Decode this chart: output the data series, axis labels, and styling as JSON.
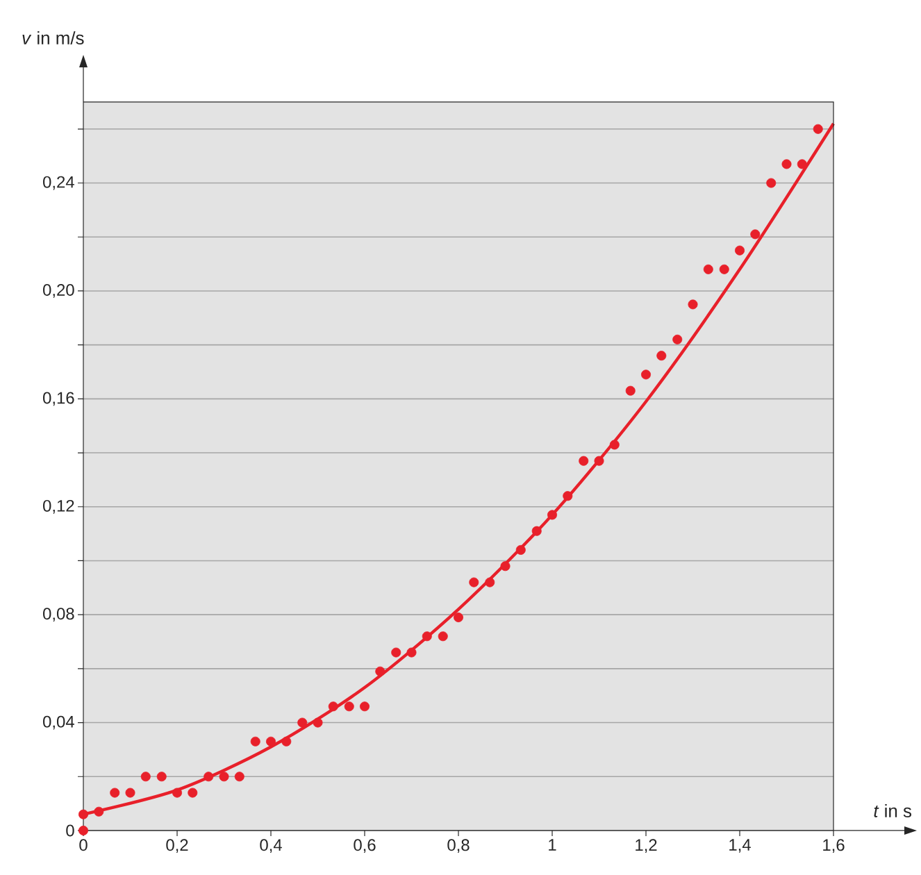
{
  "chart_data": {
    "type": "scatter",
    "xlabel": "*t* in s",
    "ylabel": "*v* in m/s",
    "xlim": [
      0,
      1.6
    ],
    "ylim": [
      0,
      0.27
    ],
    "xticks": [
      {
        "value": 0,
        "label": "0"
      },
      {
        "value": 0.2,
        "label": "0,2"
      },
      {
        "value": 0.4,
        "label": "0,4"
      },
      {
        "value": 0.6,
        "label": "0,6"
      },
      {
        "value": 0.8,
        "label": "0,8"
      },
      {
        "value": 1,
        "label": "1"
      },
      {
        "value": 1.2,
        "label": "1,2"
      },
      {
        "value": 1.4,
        "label": "1,4"
      },
      {
        "value": 1.6,
        "label": "1,6"
      }
    ],
    "yticks": [
      {
        "value": 0,
        "label": "0"
      },
      {
        "value": 0.02,
        "label": null
      },
      {
        "value": 0.04,
        "label": "0,04"
      },
      {
        "value": 0.06,
        "label": null
      },
      {
        "value": 0.08,
        "label": "0,08"
      },
      {
        "value": 0.1,
        "label": null
      },
      {
        "value": 0.12,
        "label": "0,12"
      },
      {
        "value": 0.14,
        "label": null
      },
      {
        "value": 0.16,
        "label": "0,16"
      },
      {
        "value": 0.18,
        "label": null
      },
      {
        "value": 0.2,
        "label": "0,20"
      },
      {
        "value": 0.22,
        "label": null
      },
      {
        "value": 0.24,
        "label": "0,24"
      },
      {
        "value": 0.26,
        "label": null
      }
    ],
    "grid": "y",
    "series": [
      {
        "marker": "circle",
        "color": "#e8202a",
        "x": [
          0,
          0,
          0.033,
          0.067,
          0.1,
          0.133,
          0.167,
          0.2,
          0.233,
          0.267,
          0.3,
          0.333,
          0.367,
          0.4,
          0.433,
          0.467,
          0.5,
          0.533,
          0.567,
          0.6,
          0.633,
          0.667,
          0.7,
          0.733,
          0.767,
          0.8,
          0.833,
          0.867,
          0.9,
          0.933,
          0.967,
          1.0,
          1.033,
          1.067,
          1.1,
          1.133,
          1.167,
          1.2,
          1.233,
          1.267,
          1.3,
          1.333,
          1.367,
          1.4,
          1.433,
          1.467,
          1.5,
          1.533,
          1.567
        ],
        "values": [
          0,
          0.006,
          0.007,
          0.014,
          0.014,
          0.02,
          0.02,
          0.014,
          0.014,
          0.02,
          0.02,
          0.02,
          0.033,
          0.033,
          0.033,
          0.04,
          0.04,
          0.046,
          0.046,
          0.046,
          0.059,
          0.066,
          0.066,
          0.072,
          0.072,
          0.079,
          0.092,
          0.092,
          0.098,
          0.104,
          0.111,
          0.117,
          0.124,
          0.137,
          0.137,
          0.143,
          0.163,
          0.169,
          0.176,
          0.182,
          0.195,
          0.208,
          0.208,
          0.215,
          0.221,
          0.24,
          0.247,
          0.247,
          0.26
        ]
      },
      {
        "type": "line",
        "marker": "none",
        "line_style": "solid",
        "color": "#e8202a",
        "x": [
          0,
          0.2,
          0.4,
          0.6,
          0.8,
          1.0,
          1.2,
          1.4,
          1.6
        ],
        "values": [
          0.006,
          0.015,
          0.031,
          0.053,
          0.082,
          0.117,
          0.159,
          0.208,
          0.262
        ]
      }
    ]
  }
}
